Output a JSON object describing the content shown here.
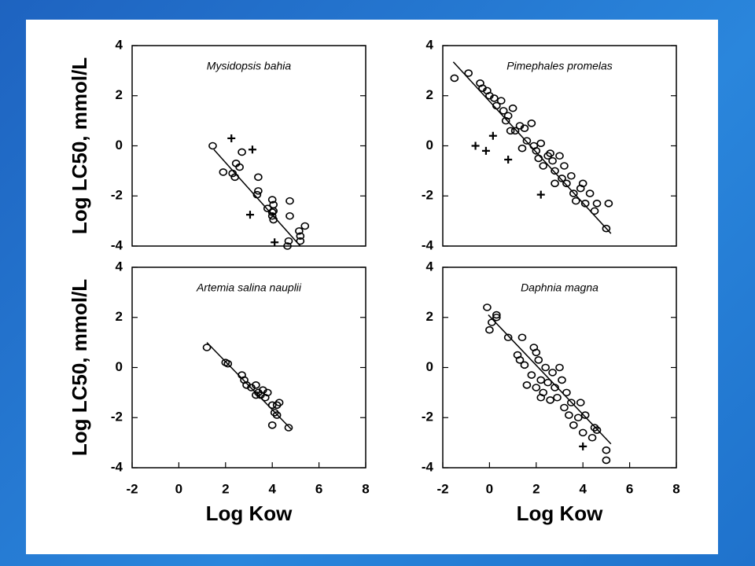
{
  "chart_data": [
    {
      "type": "scatter",
      "title": "Mysidopsis bahia",
      "y_label": "Log LC50, mmol/L",
      "xlim": [
        -2,
        8
      ],
      "ylim": [
        -4,
        4
      ],
      "yticks": [
        -4,
        -2,
        0,
        2,
        4
      ],
      "color": "#000000",
      "series": [
        {
          "marker": "o",
          "x": [
            1.45,
            1.9,
            2.3,
            2.4,
            2.45,
            2.6,
            2.7,
            3.4,
            3.4,
            3.35,
            3.8,
            4.0,
            4.05,
            4.05,
            4.0,
            4.05,
            4.0,
            4.75,
            4.75,
            4.65,
            4.7,
            5.15,
            5.2,
            5.2,
            5.4
          ],
          "values": [
            0.0,
            -1.05,
            -1.1,
            -1.25,
            -0.7,
            -0.85,
            -0.25,
            -1.25,
            -1.8,
            -1.95,
            -2.5,
            -2.15,
            -2.35,
            -2.6,
            -2.8,
            -2.95,
            -2.65,
            -2.2,
            -2.8,
            -4.0,
            -3.8,
            -3.4,
            -3.6,
            -3.8,
            -3.2
          ]
        },
        {
          "marker": "+",
          "x": [
            2.25,
            3.15,
            3.05,
            4.1
          ],
          "values": [
            0.3,
            -0.15,
            -2.75,
            -3.85
          ]
        }
      ],
      "fit_line": {
        "x": [
          1.5,
          5.2
        ],
        "values": [
          -0.15,
          -4.0
        ]
      }
    },
    {
      "type": "scatter",
      "title": "Pimephales promelas",
      "xlim": [
        -2,
        8
      ],
      "ylim": [
        -4,
        4
      ],
      "yticks": [
        -4,
        -2,
        0,
        2,
        4
      ],
      "color": "#000000",
      "series": [
        {
          "marker": "o",
          "x": [
            -1.5,
            -0.9,
            -0.4,
            -0.3,
            -0.1,
            0,
            0.2,
            0.3,
            0.5,
            0.6,
            0.7,
            0.8,
            1.0,
            1.1,
            1.3,
            1.5,
            1.6,
            1.8,
            1.9,
            2.0,
            2.1,
            2.2,
            2.3,
            2.5,
            2.6,
            2.7,
            2.8,
            3.0,
            3.1,
            3.2,
            3.3,
            3.5,
            3.6,
            3.7,
            3.9,
            4.0,
            4.1,
            4.3,
            4.5,
            4.6,
            5.0,
            5.1,
            2.8,
            1.4,
            0.9
          ],
          "values": [
            2.7,
            2.9,
            2.5,
            2.3,
            2.2,
            2.0,
            1.9,
            1.6,
            1.8,
            1.4,
            1.0,
            1.2,
            1.5,
            0.6,
            0.8,
            0.7,
            0.2,
            0.9,
            0.0,
            -0.2,
            -0.5,
            0.1,
            -0.8,
            -0.4,
            -0.3,
            -0.6,
            -1.0,
            -0.4,
            -1.3,
            -0.8,
            -1.5,
            -1.2,
            -1.9,
            -2.2,
            -1.7,
            -1.5,
            -2.3,
            -1.9,
            -2.6,
            -2.3,
            -3.3,
            -2.3,
            -1.5,
            -0.1,
            0.6
          ]
        },
        {
          "marker": "+",
          "x": [
            -0.6,
            -0.15,
            0.15,
            0.8,
            2.2
          ],
          "values": [
            0.0,
            -0.2,
            0.4,
            -0.55,
            -1.95
          ]
        }
      ],
      "fit_line": {
        "x": [
          -1.55,
          5.2
        ],
        "values": [
          3.35,
          -3.5
        ]
      }
    },
    {
      "type": "scatter",
      "title": "Artemia salina nauplii",
      "y_label": "Log LC50, mmol/L",
      "x_label": "Log Kow",
      "xlim": [
        -2,
        8
      ],
      "ylim": [
        -4,
        4
      ],
      "xticks": [
        -2,
        0,
        2,
        4,
        6,
        8
      ],
      "yticks": [
        -4,
        -2,
        0,
        2,
        4
      ],
      "color": "#000000",
      "series": [
        {
          "marker": "o",
          "x": [
            1.2,
            2.0,
            2.1,
            2.7,
            2.8,
            2.9,
            3.1,
            3.3,
            3.4,
            3.5,
            3.6,
            3.7,
            3.8,
            4.0,
            4.1,
            4.2,
            4.0,
            4.2,
            4.3,
            4.7,
            3.3
          ],
          "values": [
            0.8,
            0.2,
            0.15,
            -0.3,
            -0.5,
            -0.7,
            -0.8,
            -0.7,
            -1.0,
            -1.1,
            -0.9,
            -1.2,
            -1.0,
            -1.5,
            -1.8,
            -1.9,
            -2.3,
            -1.5,
            -1.4,
            -2.4,
            -1.1
          ]
        }
      ],
      "fit_line": {
        "x": [
          1.2,
          4.8
        ],
        "values": [
          1.0,
          -2.45
        ]
      }
    },
    {
      "type": "scatter",
      "title": "Daphnia magna",
      "x_label": "Log Kow",
      "xlim": [
        -2,
        8
      ],
      "ylim": [
        -4,
        4
      ],
      "xticks": [
        -2,
        0,
        2,
        4,
        6,
        8
      ],
      "yticks": [
        -4,
        -2,
        0,
        2,
        4
      ],
      "color": "#000000",
      "series": [
        {
          "marker": "o",
          "x": [
            -0.1,
            0.1,
            0.3,
            0.3,
            0,
            0.8,
            1.2,
            1.3,
            1.4,
            1.5,
            1.8,
            1.9,
            2.0,
            2.0,
            2.1,
            2.2,
            2.3,
            2.4,
            2.5,
            2.6,
            2.7,
            2.8,
            2.9,
            3.0,
            3.1,
            3.2,
            3.3,
            3.4,
            3.5,
            3.6,
            3.8,
            3.9,
            4.0,
            4.1,
            4.4,
            4.5,
            4.6,
            5.0,
            5.0,
            1.6,
            2.2
          ],
          "values": [
            2.4,
            1.8,
            2.1,
            2.0,
            1.5,
            1.2,
            0.5,
            0.3,
            1.2,
            0.1,
            -0.3,
            0.8,
            0.6,
            -0.8,
            0.3,
            -0.5,
            -1.0,
            0.0,
            -0.6,
            -1.3,
            -0.2,
            -0.8,
            -1.2,
            0.0,
            -0.5,
            -1.6,
            -1.0,
            -1.9,
            -1.4,
            -2.3,
            -2.0,
            -1.4,
            -2.6,
            -1.9,
            -2.8,
            -2.4,
            -2.5,
            -3.3,
            -3.7,
            -0.7,
            -1.2
          ]
        },
        {
          "marker": "+",
          "x": [
            4.0
          ],
          "values": [
            -3.15
          ]
        }
      ],
      "fit_line": {
        "x": [
          -0.05,
          5.2
        ],
        "values": [
          2.1,
          -3.05
        ]
      }
    }
  ]
}
